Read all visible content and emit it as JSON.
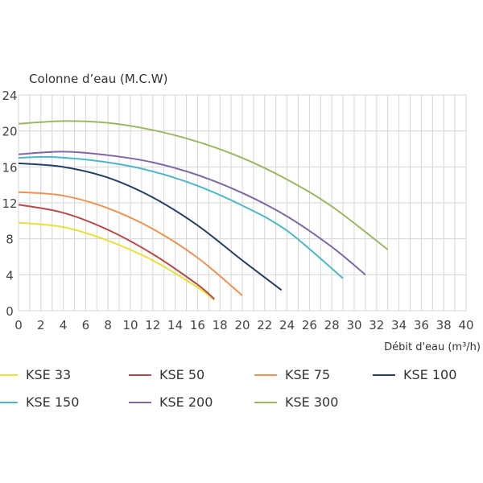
{
  "chart_data": {
    "type": "line",
    "title": "",
    "ylabel": "Colonne d’eau (M.C.W)",
    "xlabel": "Débit d'eau (m³/h)",
    "xlim": [
      0,
      40
    ],
    "ylim": [
      0,
      24
    ],
    "grid": true,
    "xticks": [
      "0",
      "2",
      "4",
      "6",
      "8",
      "10",
      "12",
      "14",
      "16",
      "18",
      "20",
      "22",
      "24",
      "26",
      "28",
      "30",
      "32",
      "34",
      "36",
      "38",
      "40"
    ],
    "yticks": [
      "0",
      "4",
      "8",
      "12",
      "16",
      "20",
      "24"
    ],
    "legend_position": "bottom",
    "series": [
      {
        "name": "KSE 33",
        "color": "#e8e03a",
        "x": [
          0,
          4,
          8,
          12,
          16,
          17.5
        ],
        "y": [
          9.8,
          9.3,
          7.8,
          5.6,
          2.6,
          1.2
        ]
      },
      {
        "name": "KSE 50",
        "color": "#b84848",
        "x": [
          0,
          4,
          8,
          12,
          16,
          17.5
        ],
        "y": [
          11.8,
          10.9,
          9.0,
          6.3,
          2.9,
          1.3
        ]
      },
      {
        "name": "KSE 75",
        "color": "#ef9150",
        "x": [
          0,
          4,
          8,
          12,
          16,
          20
        ],
        "y": [
          13.2,
          12.8,
          11.4,
          9.1,
          5.9,
          1.7
        ]
      },
      {
        "name": "KSE 100",
        "color": "#253e66",
        "x": [
          0,
          4,
          8,
          12,
          16,
          20,
          23.5
        ],
        "y": [
          16.4,
          16.0,
          14.8,
          12.6,
          9.5,
          5.6,
          2.3
        ]
      },
      {
        "name": "KSE 150",
        "color": "#4bb6c9",
        "x": [
          0,
          3,
          8,
          12,
          16,
          20,
          24,
          29
        ],
        "y": [
          17.0,
          17.1,
          16.5,
          15.5,
          13.9,
          11.7,
          8.9,
          3.6
        ]
      },
      {
        "name": "KSE 200",
        "color": "#8066a8",
        "x": [
          0,
          4,
          8,
          12,
          16,
          20,
          24,
          28,
          31
        ],
        "y": [
          17.4,
          17.7,
          17.3,
          16.5,
          15.1,
          13.1,
          10.5,
          7.1,
          4.0
        ]
      },
      {
        "name": "KSE 300",
        "color": "#9bb860",
        "x": [
          0,
          4,
          8,
          12,
          16,
          20,
          24,
          28,
          33
        ],
        "y": [
          20.8,
          21.1,
          20.9,
          20.1,
          18.8,
          17.0,
          14.6,
          11.6,
          6.8
        ]
      }
    ]
  }
}
